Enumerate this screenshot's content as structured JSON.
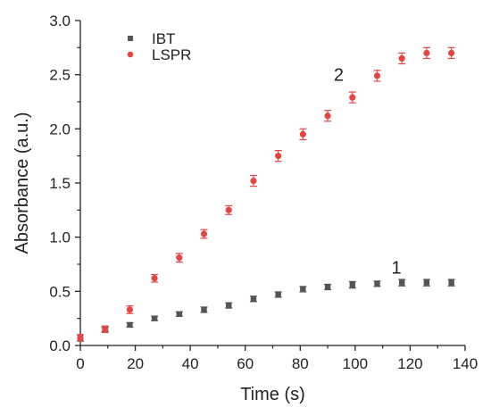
{
  "chart_data": {
    "type": "scatter",
    "title": "",
    "xlabel": "Time (s)",
    "ylabel": "Absorbance (a.u.)",
    "xlim": [
      0,
      140
    ],
    "ylim": [
      0,
      3.0
    ],
    "xticks": [
      0,
      20,
      40,
      60,
      80,
      100,
      120,
      140
    ],
    "yticks": [
      0.0,
      0.5,
      1.0,
      1.5,
      2.0,
      2.5,
      3.0
    ],
    "xtick_labels": [
      "0",
      "20",
      "40",
      "60",
      "80",
      "100",
      "120",
      "140"
    ],
    "ytick_labels": [
      "0.0",
      "0.5",
      "1.0",
      "1.5",
      "2.0",
      "2.5",
      "3.0"
    ],
    "grid": false,
    "legend_position": "top-left",
    "series": [
      {
        "name": "IBT",
        "color": "#555555",
        "marker": "square",
        "x": [
          0,
          9,
          18,
          27,
          36,
          45,
          54,
          63,
          72,
          81,
          90,
          99,
          108,
          117,
          126,
          135
        ],
        "y": [
          0.07,
          0.15,
          0.19,
          0.25,
          0.29,
          0.33,
          0.37,
          0.43,
          0.47,
          0.52,
          0.54,
          0.56,
          0.57,
          0.58,
          0.58,
          0.58
        ],
        "err": [
          0.03,
          0.02,
          0.02,
          0.02,
          0.02,
          0.025,
          0.025,
          0.025,
          0.025,
          0.025,
          0.025,
          0.03,
          0.025,
          0.03,
          0.03,
          0.03
        ]
      },
      {
        "name": "LSPR",
        "color": "#e04848",
        "marker": "circle",
        "x": [
          0,
          9,
          18,
          27,
          36,
          45,
          54,
          63,
          72,
          81,
          90,
          99,
          108,
          117,
          126,
          135
        ],
        "y": [
          0.07,
          0.15,
          0.33,
          0.62,
          0.81,
          1.03,
          1.25,
          1.52,
          1.75,
          1.95,
          2.12,
          2.29,
          2.49,
          2.65,
          2.7,
          2.7
        ],
        "err": [
          0.03,
          0.03,
          0.035,
          0.035,
          0.04,
          0.04,
          0.04,
          0.05,
          0.05,
          0.05,
          0.05,
          0.05,
          0.05,
          0.05,
          0.05,
          0.05
        ]
      }
    ],
    "annotations": [
      {
        "text": "2",
        "x": 94,
        "y": 2.5
      },
      {
        "text": "1",
        "x": 115,
        "y": 0.72
      }
    ]
  }
}
